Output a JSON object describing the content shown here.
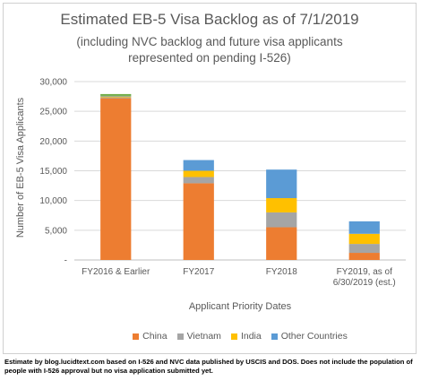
{
  "chart_data": {
    "type": "bar",
    "stacked": true,
    "title": "Estimated EB-5 Visa Backlog as of 7/1/2019",
    "subtitle_lines": [
      "(including NVC backlog and future visa applicants",
      "represented on pending I-526)"
    ],
    "xlabel": "Applicant Priority Dates",
    "ylabel": "Number of EB-5 Visa Applicants",
    "categories": [
      [
        "FY2016 & Earlier"
      ],
      [
        "FY2017"
      ],
      [
        "FY2018"
      ],
      [
        "FY2019, as of",
        "6/30/2019 (est.)"
      ]
    ],
    "ylim": [
      0,
      30000
    ],
    "yticks": [
      "-",
      "5,000",
      "10,000",
      "15,000",
      "20,000",
      "25,000",
      "30,000"
    ],
    "grid": true,
    "legend_position": "bottom",
    "series": [
      {
        "name": "China",
        "color": "#ed7d31",
        "values": [
          27200,
          12900,
          5500,
          1200
        ]
      },
      {
        "name": "Vietnam",
        "color": "#a5a5a5",
        "values": [
          150,
          1050,
          2500,
          1500
        ]
      },
      {
        "name": "India",
        "color": "#ffc000",
        "values": [
          150,
          1050,
          2400,
          1700
        ]
      },
      {
        "name": "Other Countries",
        "color": "#5b9bd5",
        "values": [
          100,
          1800,
          4800,
          2100
        ]
      }
    ]
  },
  "footnote": "Estimate by blog.lucidtext.com based on I-526 and NVC data published by USCIS and DOS. Does not include the population of people with I-526 approval but no visa application submitted yet.",
  "extra_series_color": "#70ad47"
}
